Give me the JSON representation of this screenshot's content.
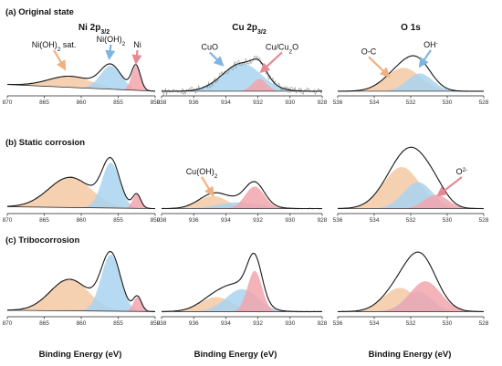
{
  "figure": {
    "row_labels": [
      "(a) Original state",
      "(b) Static corrosion",
      "(c) Tribocorrosion"
    ],
    "column_titles": [
      {
        "pre": "Ni 2p",
        "sub": "3/2",
        "post": ""
      },
      {
        "pre": "Cu 2p",
        "sub": "3/2",
        "post": ""
      },
      {
        "pre": "O 1s",
        "sub": "",
        "post": ""
      }
    ],
    "xlabel": "Binding Energy (eV)",
    "colors": {
      "orange": "#f3c9a4",
      "blue": "#a9d3ef",
      "pink": "#f2a5ad",
      "envelope": "#1a1a1a",
      "raw": "#9a9a9a",
      "arrow_orange": "#f0b080",
      "arrow_blue": "#7fb5e0",
      "arrow_pink": "#e58a93"
    }
  },
  "chart_data": [
    {
      "type": "area",
      "panel": "a-ni",
      "x_range": [
        870,
        850
      ],
      "ticks": [
        870,
        865,
        860,
        855,
        850
      ],
      "background": [
        0.17,
        0.05
      ],
      "peaks": [
        {
          "center": 861.5,
          "width": 2.9,
          "height": 0.2,
          "color": "orange"
        },
        {
          "center": 856.0,
          "width": 1.4,
          "height": 0.42,
          "color": "blue"
        },
        {
          "center": 852.6,
          "width": 0.6,
          "height": 0.44,
          "color": "pink"
        }
      ],
      "annotations": [
        {
          "pre": "Ni(OH)",
          "sub": "2",
          "post": " sat.",
          "x": 863.7,
          "y": 0.82,
          "ax": 862.2,
          "ay": 0.45,
          "color": "arrow_orange"
        },
        {
          "pre": "Ni(OH)",
          "sub": "2",
          "post": "",
          "x": 856.0,
          "y": 0.92,
          "ax": 856.2,
          "ay": 0.64,
          "color": "arrow_blue"
        },
        {
          "pre": "Ni",
          "sub": "",
          "post": "",
          "x": 852.4,
          "y": 0.82,
          "ax": 852.6,
          "ay": 0.56,
          "color": "arrow_pink"
        }
      ]
    },
    {
      "type": "area",
      "panel": "a-cu",
      "x_range": [
        938,
        928
      ],
      "ticks": [
        938,
        936,
        934,
        932,
        930,
        928
      ],
      "background": [
        0.05,
        0.05
      ],
      "noise": 0.14,
      "peaks": [
        {
          "center": 933.0,
          "width": 1.2,
          "height": 0.5,
          "color": "blue"
        },
        {
          "center": 931.9,
          "width": 0.45,
          "height": 0.22,
          "color": "pink"
        }
      ],
      "annotations": [
        {
          "pre": "CuO",
          "sub": "",
          "post": "",
          "x": 935.0,
          "y": 0.78,
          "ax": 934.2,
          "ay": 0.52,
          "color": "arrow_blue"
        },
        {
          "pre": "Cu/Cu",
          "sub": "2",
          "post": "O",
          "x": 930.5,
          "y": 0.78,
          "ax": 931.8,
          "ay": 0.4,
          "color": "arrow_pink"
        }
      ]
    },
    {
      "type": "area",
      "panel": "a-o",
      "x_range": [
        536,
        528
      ],
      "ticks": [
        536,
        534,
        532,
        530,
        528
      ],
      "background": [
        0.05,
        0.05
      ],
      "peaks": [
        {
          "center": 532.4,
          "width": 0.95,
          "height": 0.42,
          "color": "orange"
        },
        {
          "center": 531.5,
          "width": 0.7,
          "height": 0.32,
          "color": "blue"
        }
      ],
      "annotations": [
        {
          "pre": "O-C",
          "sub": "",
          "post": "",
          "x": 534.3,
          "y": 0.7,
          "ax": 533.2,
          "ay": 0.32,
          "color": "arrow_orange"
        },
        {
          "pre": "OH",
          "sub": "",
          "post": "-",
          "x": 530.9,
          "y": 0.82,
          "ax": 531.5,
          "ay": 0.5,
          "color": "arrow_blue"
        }
      ]
    },
    {
      "type": "area",
      "panel": "b-ni",
      "x_range": [
        870,
        850
      ],
      "ticks": [
        870,
        865,
        860,
        855,
        850
      ],
      "background": [
        0.08,
        0.05
      ],
      "peaks": [
        {
          "center": 861.5,
          "width": 2.9,
          "height": 0.48,
          "color": "orange"
        },
        {
          "center": 856.0,
          "width": 1.2,
          "height": 0.72,
          "color": "blue"
        },
        {
          "center": 852.5,
          "width": 0.55,
          "height": 0.22,
          "color": "pink"
        }
      ],
      "annotations": []
    },
    {
      "type": "area",
      "panel": "b-cu",
      "x_range": [
        938,
        928
      ],
      "ticks": [
        938,
        936,
        934,
        932,
        930,
        928
      ],
      "background": [
        0.05,
        0.05
      ],
      "peaks": [
        {
          "center": 934.8,
          "width": 0.9,
          "height": 0.2,
          "color": "orange"
        },
        {
          "center": 933.2,
          "width": 1.3,
          "height": 0.1,
          "color": "blue"
        },
        {
          "center": 932.2,
          "width": 0.6,
          "height": 0.35,
          "color": "pink"
        }
      ],
      "annotations": [
        {
          "pre": "Cu(OH)",
          "sub": "2",
          "post": "",
          "x": 935.5,
          "y": 0.58,
          "ax": 934.8,
          "ay": 0.26,
          "color": "arrow_orange"
        }
      ]
    },
    {
      "type": "area",
      "panel": "b-o",
      "x_range": [
        536,
        528
      ],
      "ticks": [
        536,
        534,
        532,
        530,
        528
      ],
      "background": [
        0.05,
        0.05
      ],
      "peaks": [
        {
          "center": 532.5,
          "width": 1.0,
          "height": 0.66,
          "color": "orange"
        },
        {
          "center": 531.6,
          "width": 0.8,
          "height": 0.42,
          "color": "blue"
        },
        {
          "center": 530.6,
          "width": 0.65,
          "height": 0.22,
          "color": "pink"
        }
      ],
      "annotations": [
        {
          "pre": "O",
          "sub": "",
          "post": "2-",
          "x": 529.2,
          "y": 0.58,
          "ax": 530.5,
          "ay": 0.26,
          "color": "arrow_pink"
        }
      ]
    },
    {
      "type": "area",
      "panel": "c-ni",
      "x_range": [
        870,
        850
      ],
      "ticks": [
        870,
        865,
        860,
        855,
        850
      ],
      "background": [
        0.07,
        0.05
      ],
      "peaks": [
        {
          "center": 861.6,
          "width": 2.6,
          "height": 0.48,
          "color": "orange"
        },
        {
          "center": 856.0,
          "width": 1.3,
          "height": 0.86,
          "color": "blue"
        },
        {
          "center": 852.4,
          "width": 0.55,
          "height": 0.22,
          "color": "pink"
        }
      ],
      "annotations": []
    },
    {
      "type": "area",
      "panel": "c-cu",
      "x_range": [
        938,
        928
      ],
      "ticks": [
        938,
        936,
        934,
        932,
        930,
        928
      ],
      "background": [
        0.05,
        0.05
      ],
      "peaks": [
        {
          "center": 934.6,
          "width": 1.0,
          "height": 0.22,
          "color": "orange"
        },
        {
          "center": 933.0,
          "width": 1.0,
          "height": 0.34,
          "color": "blue"
        },
        {
          "center": 932.2,
          "width": 0.45,
          "height": 0.62,
          "color": "pink"
        }
      ],
      "annotations": []
    },
    {
      "type": "area",
      "panel": "c-o",
      "x_range": [
        536,
        528
      ],
      "ticks": [
        536,
        534,
        532,
        530,
        528
      ],
      "background": [
        0.05,
        0.05
      ],
      "peaks": [
        {
          "center": 532.6,
          "width": 0.9,
          "height": 0.36,
          "color": "orange"
        },
        {
          "center": 531.6,
          "width": 0.75,
          "height": 0.3,
          "color": "blue"
        },
        {
          "center": 531.2,
          "width": 0.85,
          "height": 0.46,
          "color": "pink"
        }
      ],
      "annotations": []
    }
  ]
}
